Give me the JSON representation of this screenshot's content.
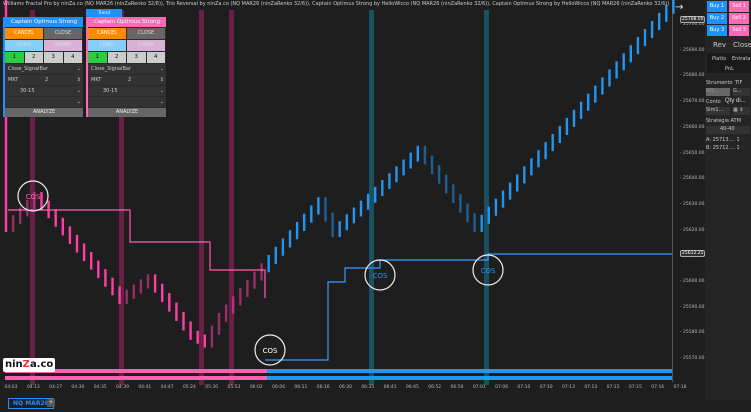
{
  "title": "Williams Fractal Pro by ninZa.co (NQ MAR26 (ninZaRenko 32/6)), Trio Reversal by ninZa.co (NQ MAR26 (ninZaRenko 32/6)), Captain Optimus Strong by HelloWicco (NQ MAR26 (ninZaRenko 32/6)), Captain Optimus Strong by HelloWicco (NQ MAR26 (ninZaRenko 32/6))",
  "trend_label": "Trend",
  "panels": [
    {
      "title": "Captain Optimus Strong",
      "color": "#1e90ff",
      "cancel": "CANCEL",
      "close": "CLOSE",
      "long": "LONG",
      "short": "SHORT",
      "nums": [
        "1",
        "2",
        "3",
        "4"
      ],
      "signal": "Close_SignalBar",
      "order_type": "MKT",
      "qty": "2",
      "atm": "30-15",
      "analyze": "ANALYZE"
    },
    {
      "title": "Captain Optimus Strong",
      "color": "#ff69b4",
      "cancel": "CANCEL",
      "close": "CLOSE",
      "long": "LONG",
      "short": "SHORT",
      "nums": [
        "1",
        "2",
        "3",
        "4"
      ],
      "signal": "Close_SignalBar",
      "order_type": "MKT",
      "qty": "2",
      "atm": "30-15",
      "analyze": "ANALYZE"
    }
  ],
  "axis": {
    "y_ticks": [
      "25700.00",
      "25690.00",
      "25680.00",
      "25670.00",
      "25660.00",
      "25650.00",
      "25640.00",
      "25630.00",
      "25620.00",
      "25600.00",
      "25590.00",
      "25580.00",
      "25570.00"
    ],
    "last_price": "25708.00",
    "line_price": "25612.25",
    "x_ticks": [
      "04:03",
      "04:13",
      "04:27",
      "04:30",
      "04:35",
      "04:39",
      "04:41",
      "04:47",
      "05:24",
      "05:30",
      "05:53",
      "06:02",
      "06:06",
      "06:11",
      "06:16",
      "06:30",
      "06:35",
      "06:41",
      "06:45",
      "06:52",
      "06:58",
      "07:01",
      "07:06",
      "07:10",
      "07:10",
      "07:13",
      "07:13",
      "07:15",
      "07:15",
      "07:16",
      "07:18"
    ]
  },
  "chart_price_path": [
    [
      0,
      25620
    ],
    [
      4,
      25632
    ],
    [
      16,
      25592
    ],
    [
      20,
      25600
    ],
    [
      26,
      25578
    ],
    [
      28,
      25575
    ],
    [
      30,
      25585
    ],
    [
      44,
      25630
    ],
    [
      46,
      25618
    ],
    [
      58,
      25650
    ],
    [
      66,
      25620
    ],
    [
      94,
      25708
    ]
  ],
  "signals": [
    "COS",
    "COS",
    "COS",
    "COS"
  ],
  "colors": {
    "bull": "#2196f3",
    "bear": "#ff3ea5",
    "pink_band": "#7a2050",
    "teal_band": "#1a5c70"
  },
  "right_panel": {
    "buy": [
      "Buy 1",
      "Buy 2",
      "Buy 3"
    ],
    "sell": [
      "Sell 1",
      "Sell 2",
      "Sell 3"
    ],
    "rev": "Rev",
    "close": "Close",
    "flat": "Piatto",
    "entry": "Entrata",
    "pnl": "PnL",
    "instrument_label": "Strumento",
    "tif_label": "TIF",
    "instrument": "NQ...",
    "tif": "G...",
    "account_label": "Conto",
    "qty_label": "Qty di...",
    "account": "Sim1...",
    "atm_label": "Strategia ATM",
    "atm": "40-40",
    "ask": "A: 25713....  1",
    "bid": "B: 25712....  1"
  },
  "logo": "ninZa.co",
  "tab": "NQ MAR26",
  "tab_add": "+"
}
